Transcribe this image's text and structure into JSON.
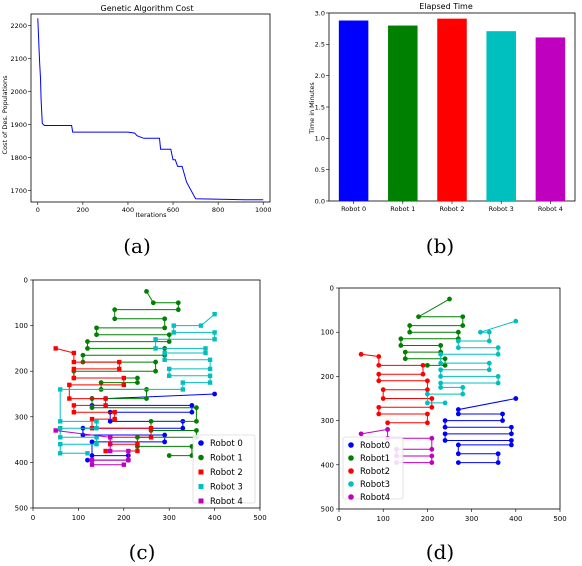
{
  "chart_data": [
    {
      "id": "a",
      "type": "line",
      "caption": "(a)",
      "title": "Genetic Algorithm Cost",
      "xlabel": "Iterations",
      "ylabel": "Cost of Des. Populations",
      "xlim": [
        -30,
        1030
      ],
      "ylim": [
        1665,
        2235
      ],
      "xticks": [
        0,
        200,
        400,
        600,
        800,
        1000
      ],
      "yticks": [
        1700,
        1800,
        1900,
        2000,
        2100,
        2200
      ],
      "color": "#0000ff",
      "series": [
        {
          "x": [
            0,
            5,
            8,
            12,
            15,
            20,
            30,
            40,
            150,
            155,
            400,
            430,
            440,
            470,
            540,
            545,
            590,
            600,
            610,
            620,
            640,
            660,
            700,
            920,
            1000
          ],
          "y": [
            2222,
            2140,
            2090,
            2040,
            1975,
            1903,
            1897,
            1897,
            1897,
            1877,
            1877,
            1874,
            1866,
            1858,
            1858,
            1825,
            1825,
            1793,
            1793,
            1773,
            1773,
            1725,
            1675,
            1672,
            1672
          ]
        }
      ]
    },
    {
      "id": "b",
      "type": "bar",
      "caption": "(b)",
      "title": "Elapsed Time",
      "ylabel": "Time in Minutes",
      "ylim": [
        0,
        3.0
      ],
      "yticks": [
        0.0,
        0.5,
        1.0,
        1.5,
        2.0,
        2.5,
        3.0
      ],
      "ytick_labels": [
        "0.0",
        "0.5",
        "1.0",
        "1.5",
        "2.0",
        "2.5",
        "3.0"
      ],
      "categories": [
        "Robot 0",
        "Robot 1",
        "Robot 2",
        "Robot 3",
        "Robot 4"
      ],
      "values": [
        2.88,
        2.8,
        2.91,
        2.71,
        2.61
      ],
      "colors": [
        "#0000ff",
        "#008000",
        "#ff0000",
        "#00bfbf",
        "#bf00bf"
      ]
    },
    {
      "id": "c",
      "type": "line",
      "caption": "(c)",
      "xlim": [
        0,
        500
      ],
      "ylim": [
        500,
        0
      ],
      "xticks": [
        0,
        100,
        200,
        300,
        400,
        500
      ],
      "yticks": [
        0,
        100,
        200,
        300,
        400,
        500
      ],
      "legend": [
        "Robot 0",
        "Robot 1",
        "Robot 2",
        "Robot 3",
        "Robot 4"
      ],
      "legend_loc": "lower-right",
      "colors": [
        "#0000ff",
        "#008000",
        "#ff0000",
        "#00bfbf",
        "#bf00bf"
      ],
      "markers": [
        "circle",
        "circle",
        "square",
        "square",
        "square"
      ],
      "series": [
        {
          "name": "Robot 0",
          "points": [
            [
              400,
              250
            ],
            [
              160,
              260
            ],
            [
              130,
              260
            ],
            [
              130,
              275
            ],
            [
              350,
              275
            ],
            [
              350,
              290
            ],
            [
              170,
              290
            ],
            [
              170,
              310
            ],
            [
              330,
              310
            ],
            [
              330,
              325
            ],
            [
              110,
              325
            ],
            [
              110,
              340
            ],
            [
              290,
              340
            ],
            [
              290,
              355
            ],
            [
              130,
              355
            ],
            [
              130,
              385
            ],
            [
              210,
              385
            ],
            [
              210,
              395
            ],
            [
              120,
              395
            ]
          ]
        },
        {
          "name": "Robot 1",
          "points": [
            [
              250,
              25
            ],
            [
              265,
              50
            ],
            [
              320,
              50
            ],
            [
              320,
              65
            ],
            [
              180,
              65
            ],
            [
              180,
              85
            ],
            [
              290,
              85
            ],
            [
              290,
              105
            ],
            [
              140,
              105
            ],
            [
              140,
              120
            ],
            [
              300,
              120
            ],
            [
              300,
              135
            ],
            [
              120,
              135
            ],
            [
              120,
              150
            ],
            [
              290,
              150
            ],
            [
              290,
              165
            ],
            [
              110,
              165
            ],
            [
              110,
              180
            ],
            [
              270,
              180
            ],
            [
              270,
              200
            ],
            [
              90,
              200
            ],
            [
              90,
              215
            ],
            [
              230,
              215
            ],
            [
              230,
              225
            ],
            [
              150,
              225
            ],
            [
              150,
              240
            ],
            [
              250,
              240
            ],
            [
              250,
              260
            ],
            [
              130,
              260
            ],
            [
              130,
              280
            ],
            [
              360,
              280
            ],
            [
              360,
              310
            ],
            [
              260,
              310
            ],
            [
              260,
              330
            ],
            [
              360,
              330
            ],
            [
              360,
              345
            ],
            [
              230,
              345
            ],
            [
              230,
              365
            ],
            [
              350,
              365
            ],
            [
              350,
              385
            ],
            [
              300,
              385
            ]
          ]
        },
        {
          "name": "Robot 2",
          "points": [
            [
              50,
              150
            ],
            [
              90,
              160
            ],
            [
              90,
              180
            ],
            [
              190,
              180
            ],
            [
              190,
              195
            ],
            [
              90,
              195
            ],
            [
              90,
              215
            ],
            [
              200,
              215
            ],
            [
              200,
              230
            ],
            [
              80,
              230
            ],
            [
              80,
              260
            ],
            [
              160,
              260
            ],
            [
              160,
              275
            ],
            [
              90,
              275
            ],
            [
              90,
              290
            ],
            [
              180,
              290
            ],
            [
              180,
              305
            ],
            [
              130,
              305
            ],
            [
              130,
              325
            ],
            [
              260,
              325
            ],
            [
              260,
              345
            ],
            [
              170,
              345
            ],
            [
              170,
              360
            ],
            [
              230,
              360
            ],
            [
              230,
              375
            ],
            [
              160,
              375
            ]
          ]
        },
        {
          "name": "Robot 3",
          "points": [
            [
              400,
              75
            ],
            [
              370,
              100
            ],
            [
              310,
              100
            ],
            [
              310,
              115
            ],
            [
              400,
              115
            ],
            [
              400,
              130
            ],
            [
              270,
              130
            ],
            [
              270,
              150
            ],
            [
              380,
              150
            ],
            [
              380,
              160
            ],
            [
              290,
              160
            ],
            [
              290,
              175
            ],
            [
              390,
              175
            ],
            [
              390,
              195
            ],
            [
              300,
              195
            ],
            [
              300,
              210
            ],
            [
              390,
              210
            ],
            [
              390,
              225
            ],
            [
              330,
              225
            ],
            [
              330,
              240
            ],
            [
              60,
              240
            ],
            [
              60,
              310
            ],
            [
              140,
              310
            ],
            [
              140,
              325
            ],
            [
              60,
              325
            ],
            [
              60,
              345
            ],
            [
              140,
              345
            ],
            [
              140,
              360
            ],
            [
              60,
              360
            ],
            [
              60,
              380
            ],
            [
              120,
              380
            ]
          ]
        },
        {
          "name": "Robot 4",
          "points": [
            [
              50,
              330
            ],
            [
              170,
              345
            ],
            [
              170,
              375
            ],
            [
              210,
              375
            ],
            [
              210,
              395
            ],
            [
              130,
              395
            ],
            [
              130,
              405
            ],
            [
              200,
              405
            ]
          ]
        }
      ]
    },
    {
      "id": "d",
      "type": "line",
      "caption": "(d)",
      "xlim": [
        0,
        500
      ],
      "ylim": [
        500,
        0
      ],
      "xticks": [
        0,
        100,
        200,
        300,
        400,
        500
      ],
      "yticks": [
        0,
        100,
        200,
        300,
        400,
        500
      ],
      "legend": [
        "Robot0",
        "Robot1",
        "Robot2",
        "Robot3",
        "Robot4"
      ],
      "legend_loc": "lower-left",
      "colors": [
        "#0000ff",
        "#008000",
        "#ff0000",
        "#00bfbf",
        "#bf00bf"
      ],
      "markers": [
        "circle",
        "circle",
        "circle",
        "circle",
        "circle"
      ],
      "series": [
        {
          "name": "Robot0",
          "points": [
            [
              400,
              250
            ],
            [
              270,
              275
            ],
            [
              270,
              285
            ],
            [
              370,
              285
            ],
            [
              370,
              300
            ],
            [
              240,
              300
            ],
            [
              240,
              315
            ],
            [
              390,
              315
            ],
            [
              390,
              330
            ],
            [
              240,
              330
            ],
            [
              240,
              345
            ],
            [
              390,
              345
            ],
            [
              390,
              355
            ],
            [
              270,
              355
            ],
            [
              270,
              375
            ],
            [
              360,
              375
            ],
            [
              360,
              395
            ],
            [
              270,
              395
            ]
          ]
        },
        {
          "name": "Robot1",
          "points": [
            [
              250,
              25
            ],
            [
              180,
              65
            ],
            [
              280,
              65
            ],
            [
              280,
              85
            ],
            [
              160,
              85
            ],
            [
              160,
              100
            ],
            [
              270,
              100
            ],
            [
              270,
              115
            ],
            [
              140,
              115
            ],
            [
              140,
              130
            ],
            [
              230,
              130
            ],
            [
              230,
              145
            ],
            [
              150,
              145
            ],
            [
              150,
              160
            ],
            [
              240,
              160
            ],
            [
              240,
              175
            ],
            [
              200,
              175
            ]
          ]
        },
        {
          "name": "Robot2",
          "points": [
            [
              50,
              150
            ],
            [
              90,
              155
            ],
            [
              90,
              175
            ],
            [
              190,
              175
            ],
            [
              190,
              195
            ],
            [
              90,
              195
            ],
            [
              90,
              210
            ],
            [
              200,
              210
            ],
            [
              200,
              230
            ],
            [
              100,
              230
            ],
            [
              100,
              250
            ],
            [
              210,
              250
            ],
            [
              210,
              270
            ],
            [
              90,
              270
            ],
            [
              90,
              285
            ],
            [
              200,
              285
            ],
            [
              200,
              305
            ],
            [
              110,
              305
            ]
          ]
        },
        {
          "name": "Robot3",
          "points": [
            [
              400,
              75
            ],
            [
              320,
              100
            ],
            [
              340,
              100
            ],
            [
              340,
              120
            ],
            [
              270,
              120
            ],
            [
              270,
              135
            ],
            [
              360,
              135
            ],
            [
              360,
              150
            ],
            [
              230,
              150
            ],
            [
              230,
              170
            ],
            [
              340,
              170
            ],
            [
              340,
              185
            ],
            [
              230,
              185
            ],
            [
              230,
              200
            ],
            [
              360,
              200
            ],
            [
              360,
              215
            ],
            [
              230,
              215
            ],
            [
              230,
              225
            ],
            [
              280,
              225
            ],
            [
              280,
              240
            ],
            [
              200,
              240
            ],
            [
              200,
              260
            ],
            [
              240,
              260
            ]
          ]
        },
        {
          "name": "Robot4",
          "points": [
            [
              50,
              330
            ],
            [
              110,
              320
            ],
            [
              110,
              340
            ],
            [
              210,
              340
            ],
            [
              210,
              365
            ],
            [
              130,
              365
            ],
            [
              130,
              380
            ],
            [
              210,
              380
            ],
            [
              210,
              395
            ],
            [
              130,
              395
            ]
          ]
        }
      ]
    }
  ]
}
